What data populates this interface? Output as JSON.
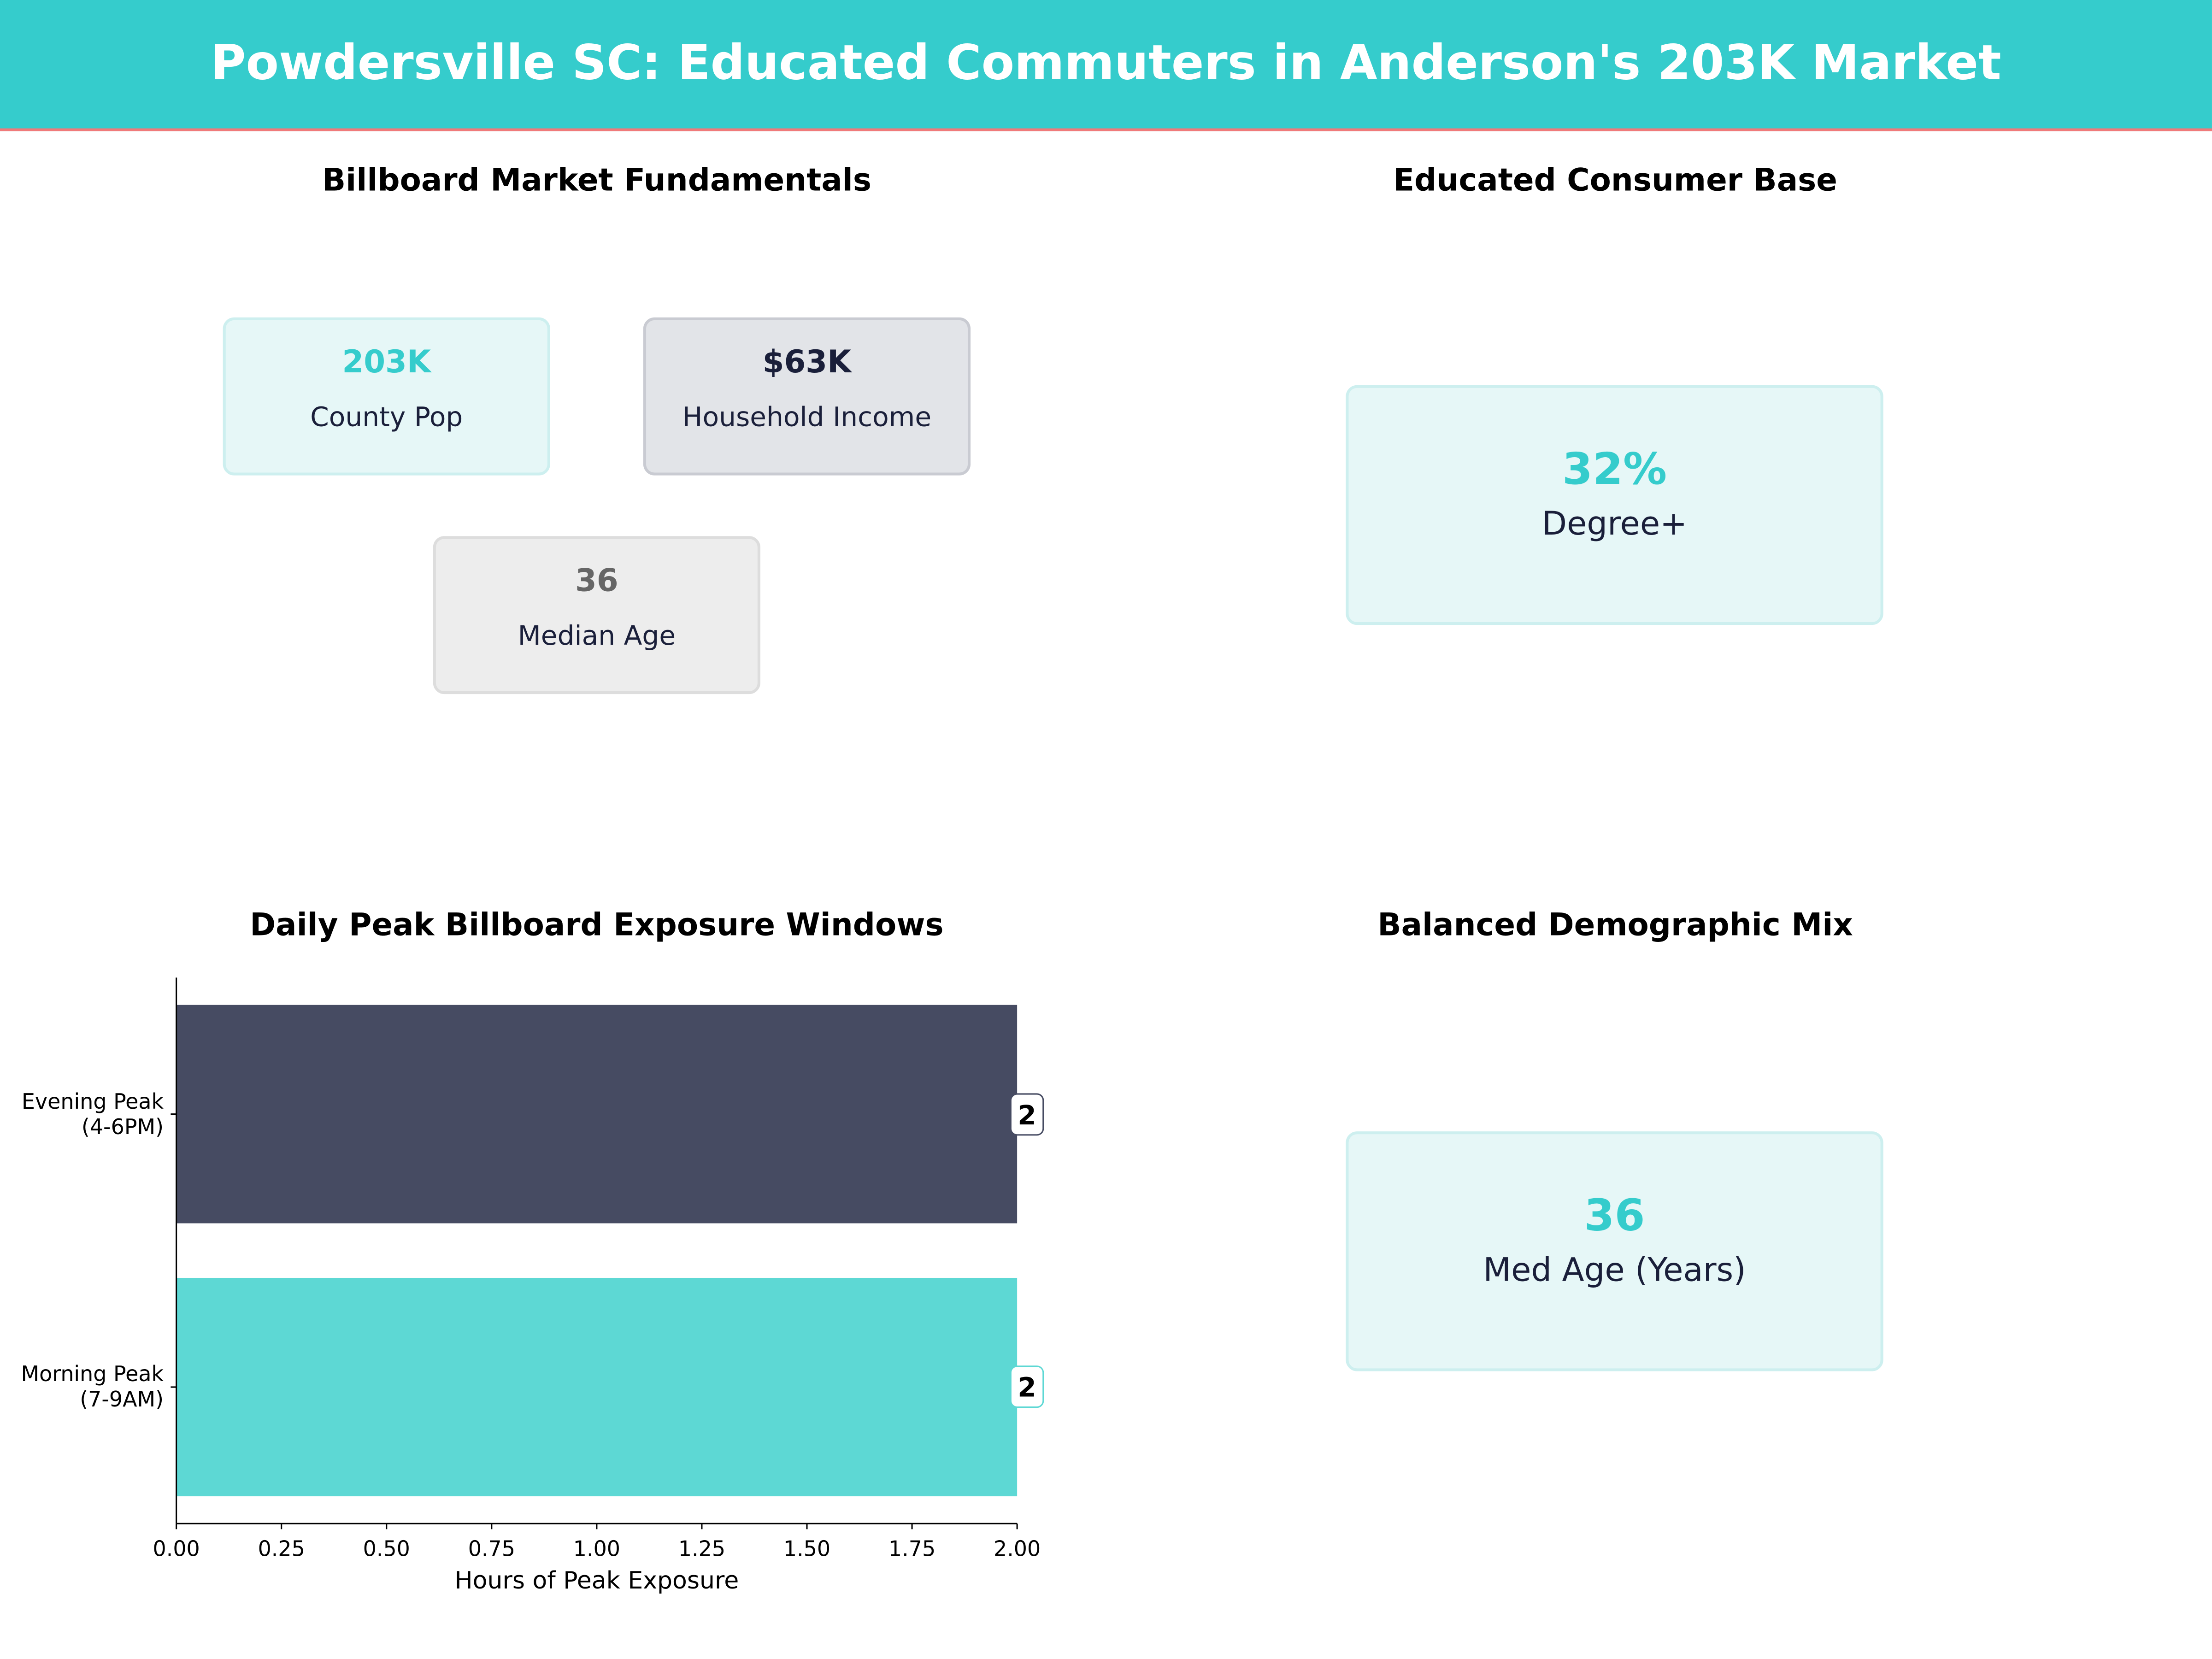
{
  "header": {
    "title": "Powdersville SC: Educated Commuters in Anderson's 203K Market"
  },
  "fundamentals": {
    "title": "Billboard Market Fundamentals",
    "cards": [
      {
        "value": "203K",
        "label": "County Pop",
        "color": "#35CCCC"
      },
      {
        "value": "$63K",
        "label": "Household Income",
        "color": "#1A1F3A"
      },
      {
        "value": "36",
        "label": "Median Age",
        "color": "#666666"
      }
    ]
  },
  "education": {
    "title": "Educated Consumer Base",
    "value": "32%",
    "label": "Degree+"
  },
  "demographic": {
    "title": "Balanced Demographic Mix",
    "value": "36",
    "label": "Med Age (Years)"
  },
  "chart_data": {
    "type": "bar",
    "orientation": "horizontal",
    "title": "Daily Peak Billboard Exposure Windows",
    "xlabel": "Hours of Peak Exposure",
    "ylabel": "",
    "categories": [
      "Morning Peak\n(7-9AM)",
      "Evening Peak\n(4-6PM)"
    ],
    "category_lines": [
      [
        "Morning Peak",
        "(7-9AM)"
      ],
      [
        "Evening Peak",
        "(4-6PM)"
      ]
    ],
    "values": [
      2,
      2
    ],
    "data_labels": [
      "2",
      "2"
    ],
    "colors": [
      "#5DD8D4",
      "#464B62"
    ],
    "xlim": [
      0,
      2
    ],
    "xticks": [
      "0.00",
      "0.25",
      "0.50",
      "0.75",
      "1.00",
      "1.25",
      "1.50",
      "1.75",
      "2.00"
    ],
    "grid": false
  }
}
